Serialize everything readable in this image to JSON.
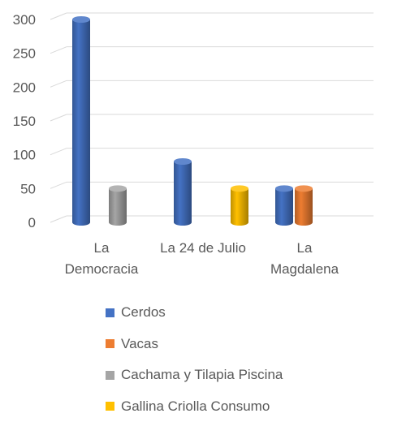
{
  "chart_data": {
    "type": "bar",
    "style": "3d-cylinder",
    "categories": [
      {
        "lines": [
          "La",
          "Democracia"
        ]
      },
      {
        "lines": [
          "La 24 de Julio"
        ]
      },
      {
        "lines": [
          "La",
          "Magdalena"
        ]
      }
    ],
    "series": [
      {
        "name": "Cerdos",
        "color": "#4472C4",
        "values": [
          300,
          90,
          50
        ]
      },
      {
        "name": "Vacas",
        "color": "#ED7D31",
        "values": [
          0,
          0,
          50
        ]
      },
      {
        "name": "Cachama y Tilapia Piscina",
        "color": "#A5A5A5",
        "values": [
          50,
          0,
          0
        ]
      },
      {
        "name": "Gallina Criolla Consumo",
        "color": "#FFC000",
        "values": [
          0,
          50,
          0
        ]
      }
    ],
    "yticks": [
      "0",
      "50",
      "100",
      "150",
      "200",
      "250",
      "300"
    ],
    "ylim": [
      0,
      300
    ],
    "grid": true,
    "legend_position": "bottom"
  }
}
